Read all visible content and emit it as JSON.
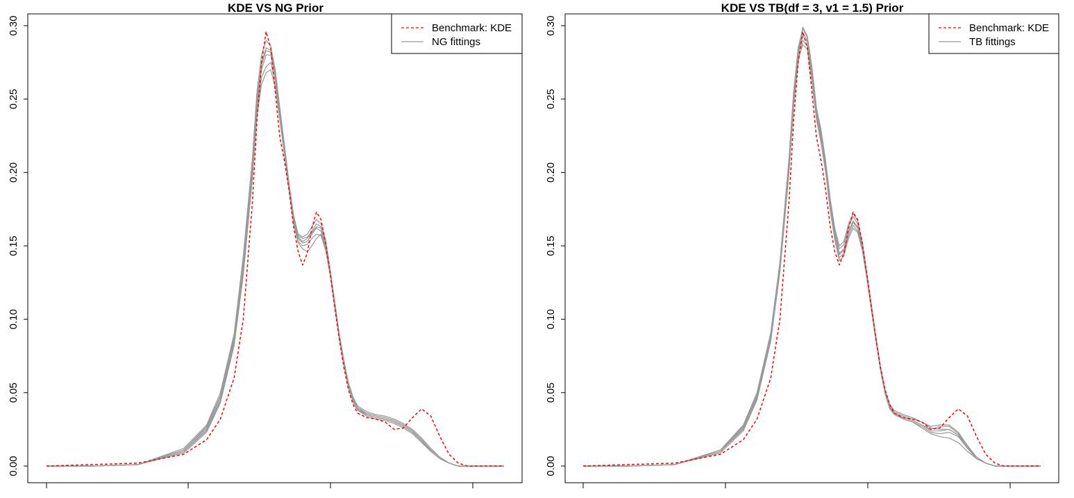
{
  "colors": {
    "kde": "#ff0000",
    "fittings": "#999999",
    "axis": "#000000"
  },
  "chart_data": [
    {
      "type": "line",
      "title": "KDE VS NG Prior",
      "xlabel": "",
      "ylabel": "",
      "ylim": [
        0,
        0.3
      ],
      "yticks": [
        "0.00",
        "0.05",
        "0.10",
        "0.15",
        "0.20",
        "0.25",
        "0.30"
      ],
      "xlim": [
        0,
        1
      ],
      "legend_position": "top-right",
      "legend": [
        "Benchmark: KDE",
        "NG fittings"
      ],
      "benchmark": {
        "name": "Benchmark: KDE",
        "x": [
          0.0,
          0.1,
          0.2,
          0.3,
          0.35,
          0.38,
          0.41,
          0.43,
          0.45,
          0.46,
          0.47,
          0.48,
          0.49,
          0.5,
          0.51,
          0.52,
          0.53,
          0.54,
          0.55,
          0.56,
          0.57,
          0.58,
          0.59,
          0.6,
          0.61,
          0.62,
          0.63,
          0.64,
          0.65,
          0.66,
          0.67,
          0.68,
          0.7,
          0.72,
          0.74,
          0.76,
          0.78,
          0.8,
          0.82,
          0.84,
          0.86,
          0.88,
          0.9,
          0.92,
          0.94,
          0.96,
          0.98,
          1.0
        ],
        "y": [
          0.0,
          0.001,
          0.002,
          0.008,
          0.018,
          0.032,
          0.06,
          0.1,
          0.18,
          0.235,
          0.275,
          0.296,
          0.285,
          0.255,
          0.224,
          0.208,
          0.188,
          0.163,
          0.146,
          0.137,
          0.145,
          0.162,
          0.173,
          0.168,
          0.152,
          0.131,
          0.108,
          0.086,
          0.067,
          0.052,
          0.042,
          0.036,
          0.033,
          0.032,
          0.03,
          0.025,
          0.026,
          0.033,
          0.039,
          0.034,
          0.02,
          0.008,
          0.002,
          0.0,
          0.0,
          0.0,
          0.0,
          0.0
        ]
      },
      "fittings": {
        "name": "NG fittings",
        "x": [
          0.0,
          0.1,
          0.2,
          0.3,
          0.35,
          0.38,
          0.41,
          0.43,
          0.45,
          0.46,
          0.47,
          0.48,
          0.49,
          0.5,
          0.51,
          0.52,
          0.53,
          0.54,
          0.55,
          0.56,
          0.57,
          0.58,
          0.59,
          0.6,
          0.61,
          0.62,
          0.63,
          0.64,
          0.65,
          0.66,
          0.67,
          0.68,
          0.7,
          0.72,
          0.74,
          0.76,
          0.78,
          0.8,
          0.82,
          0.84,
          0.86,
          0.88,
          0.9,
          0.92,
          0.94,
          0.96,
          0.98,
          1.0
        ],
        "series": [
          {
            "y": [
              0.0,
              0.0,
              0.001,
              0.01,
              0.025,
              0.045,
              0.085,
              0.135,
              0.2,
              0.245,
              0.27,
              0.28,
              0.28,
              0.265,
              0.24,
              0.215,
              0.19,
              0.168,
              0.155,
              0.152,
              0.153,
              0.158,
              0.162,
              0.16,
              0.15,
              0.132,
              0.11,
              0.088,
              0.07,
              0.055,
              0.045,
              0.039,
              0.035,
              0.033,
              0.032,
              0.03,
              0.027,
              0.023,
              0.017,
              0.01,
              0.005,
              0.002,
              0.0,
              0.0,
              0.0,
              0.0,
              0.0,
              0.0
            ]
          },
          {
            "y": [
              0.0,
              0.0,
              0.001,
              0.011,
              0.027,
              0.048,
              0.088,
              0.14,
              0.205,
              0.25,
              0.275,
              0.285,
              0.283,
              0.268,
              0.242,
              0.217,
              0.192,
              0.17,
              0.157,
              0.155,
              0.156,
              0.16,
              0.165,
              0.163,
              0.152,
              0.133,
              0.111,
              0.089,
              0.071,
              0.056,
              0.046,
              0.04,
              0.036,
              0.034,
              0.033,
              0.031,
              0.028,
              0.024,
              0.018,
              0.011,
              0.006,
              0.002,
              0.0,
              0.0,
              0.0,
              0.0,
              0.0,
              0.0
            ]
          },
          {
            "y": [
              0.0,
              0.0,
              0.001,
              0.009,
              0.023,
              0.043,
              0.082,
              0.13,
              0.196,
              0.24,
              0.265,
              0.272,
              0.275,
              0.262,
              0.238,
              0.213,
              0.188,
              0.166,
              0.153,
              0.15,
              0.151,
              0.155,
              0.158,
              0.157,
              0.147,
              0.13,
              0.108,
              0.087,
              0.069,
              0.054,
              0.044,
              0.038,
              0.034,
              0.032,
              0.031,
              0.029,
              0.026,
              0.022,
              0.016,
              0.01,
              0.005,
              0.002,
              0.0,
              0.0,
              0.0,
              0.0,
              0.0,
              0.0
            ]
          },
          {
            "y": [
              0.0,
              0.0,
              0.001,
              0.012,
              0.028,
              0.05,
              0.09,
              0.143,
              0.21,
              0.255,
              0.28,
              0.29,
              0.286,
              0.27,
              0.244,
              0.219,
              0.193,
              0.171,
              0.158,
              0.156,
              0.158,
              0.163,
              0.168,
              0.165,
              0.154,
              0.134,
              0.112,
              0.09,
              0.072,
              0.057,
              0.047,
              0.041,
              0.037,
              0.035,
              0.034,
              0.032,
              0.029,
              0.025,
              0.019,
              0.012,
              0.006,
              0.002,
              0.0,
              0.0,
              0.0,
              0.0,
              0.0,
              0.0
            ]
          },
          {
            "y": [
              0.0,
              0.0,
              0.001,
              0.01,
              0.024,
              0.044,
              0.083,
              0.132,
              0.198,
              0.238,
              0.26,
              0.268,
              0.27,
              0.258,
              0.236,
              0.212,
              0.189,
              0.165,
              0.152,
              0.148,
              0.146,
              0.15,
              0.155,
              0.158,
              0.149,
              0.131,
              0.109,
              0.087,
              0.069,
              0.054,
              0.044,
              0.038,
              0.035,
              0.033,
              0.032,
              0.03,
              0.027,
              0.023,
              0.017,
              0.01,
              0.005,
              0.002,
              0.0,
              0.0,
              0.0,
              0.0,
              0.0,
              0.0
            ]
          },
          {
            "y": [
              0.0,
              0.0,
              0.001,
              0.011,
              0.026,
              0.047,
              0.087,
              0.138,
              0.203,
              0.248,
              0.273,
              0.283,
              0.282,
              0.266,
              0.241,
              0.216,
              0.191,
              0.169,
              0.156,
              0.153,
              0.155,
              0.159,
              0.163,
              0.162,
              0.151,
              0.132,
              0.11,
              0.088,
              0.07,
              0.055,
              0.045,
              0.039,
              0.036,
              0.034,
              0.033,
              0.031,
              0.028,
              0.024,
              0.018,
              0.011,
              0.006,
              0.002,
              0.0,
              0.0,
              0.0,
              0.0,
              0.0,
              0.0
            ]
          }
        ]
      }
    },
    {
      "type": "line",
      "title": "KDE VS TB(df = 3, v1 = 1.5) Prior",
      "xlabel": "",
      "ylabel": "",
      "ylim": [
        0,
        0.3
      ],
      "yticks": [
        "0.00",
        "0.05",
        "0.10",
        "0.15",
        "0.20",
        "0.25",
        "0.30"
      ],
      "xlim": [
        0,
        1
      ],
      "legend_position": "top-right",
      "legend": [
        "Benchmark: KDE",
        "TB fittings"
      ],
      "benchmark": {
        "name": "Benchmark: KDE",
        "x": [
          0.0,
          0.1,
          0.2,
          0.3,
          0.35,
          0.38,
          0.41,
          0.43,
          0.45,
          0.46,
          0.47,
          0.48,
          0.49,
          0.5,
          0.51,
          0.52,
          0.53,
          0.54,
          0.55,
          0.56,
          0.57,
          0.58,
          0.59,
          0.6,
          0.61,
          0.62,
          0.63,
          0.64,
          0.65,
          0.66,
          0.67,
          0.68,
          0.7,
          0.72,
          0.74,
          0.76,
          0.78,
          0.8,
          0.82,
          0.84,
          0.86,
          0.88,
          0.9,
          0.92,
          0.94,
          0.96,
          0.98,
          1.0
        ],
        "y": [
          0.0,
          0.001,
          0.002,
          0.008,
          0.018,
          0.032,
          0.06,
          0.1,
          0.18,
          0.235,
          0.275,
          0.296,
          0.285,
          0.255,
          0.224,
          0.208,
          0.188,
          0.163,
          0.146,
          0.137,
          0.145,
          0.162,
          0.173,
          0.168,
          0.152,
          0.131,
          0.108,
          0.086,
          0.067,
          0.052,
          0.042,
          0.036,
          0.033,
          0.032,
          0.03,
          0.025,
          0.026,
          0.033,
          0.039,
          0.034,
          0.02,
          0.008,
          0.002,
          0.0,
          0.0,
          0.0,
          0.0,
          0.0
        ]
      },
      "fittings": {
        "name": "TB fittings",
        "x": [
          0.0,
          0.1,
          0.2,
          0.3,
          0.35,
          0.38,
          0.41,
          0.43,
          0.45,
          0.46,
          0.47,
          0.48,
          0.49,
          0.5,
          0.51,
          0.52,
          0.53,
          0.54,
          0.55,
          0.56,
          0.57,
          0.58,
          0.59,
          0.6,
          0.61,
          0.62,
          0.63,
          0.64,
          0.65,
          0.66,
          0.67,
          0.68,
          0.7,
          0.72,
          0.74,
          0.76,
          0.78,
          0.8,
          0.82,
          0.84,
          0.86,
          0.88,
          0.9,
          0.92,
          0.94,
          0.96,
          0.98,
          1.0
        ],
        "series": [
          {
            "y": [
              0.0,
              0.0,
              0.001,
              0.01,
              0.026,
              0.048,
              0.088,
              0.135,
              0.205,
              0.25,
              0.28,
              0.295,
              0.29,
              0.268,
              0.24,
              0.225,
              0.205,
              0.178,
              0.158,
              0.145,
              0.148,
              0.16,
              0.167,
              0.163,
              0.15,
              0.13,
              0.108,
              0.086,
              0.066,
              0.05,
              0.04,
              0.036,
              0.033,
              0.031,
              0.028,
              0.025,
              0.027,
              0.027,
              0.022,
              0.013,
              0.006,
              0.002,
              0.0,
              0.0,
              0.0,
              0.0,
              0.0,
              0.0
            ]
          },
          {
            "y": [
              0.0,
              0.0,
              0.001,
              0.011,
              0.028,
              0.05,
              0.091,
              0.139,
              0.21,
              0.255,
              0.285,
              0.298,
              0.292,
              0.27,
              0.242,
              0.227,
              0.206,
              0.18,
              0.16,
              0.148,
              0.151,
              0.163,
              0.17,
              0.165,
              0.152,
              0.131,
              0.109,
              0.087,
              0.067,
              0.051,
              0.041,
              0.037,
              0.034,
              0.032,
              0.03,
              0.027,
              0.028,
              0.028,
              0.023,
              0.014,
              0.006,
              0.002,
              0.0,
              0.0,
              0.0,
              0.0,
              0.0,
              0.0
            ]
          },
          {
            "y": [
              0.0,
              0.0,
              0.001,
              0.009,
              0.024,
              0.045,
              0.085,
              0.132,
              0.2,
              0.245,
              0.275,
              0.29,
              0.286,
              0.265,
              0.238,
              0.222,
              0.202,
              0.175,
              0.155,
              0.142,
              0.145,
              0.157,
              0.164,
              0.16,
              0.148,
              0.128,
              0.107,
              0.085,
              0.065,
              0.049,
              0.039,
              0.035,
              0.032,
              0.03,
              0.026,
              0.022,
              0.02,
              0.019,
              0.016,
              0.01,
              0.005,
              0.002,
              0.0,
              0.0,
              0.0,
              0.0,
              0.0,
              0.0
            ]
          },
          {
            "y": [
              0.0,
              0.0,
              0.001,
              0.011,
              0.027,
              0.049,
              0.09,
              0.137,
              0.207,
              0.252,
              0.282,
              0.299,
              0.293,
              0.272,
              0.244,
              0.229,
              0.208,
              0.182,
              0.162,
              0.15,
              0.153,
              0.165,
              0.172,
              0.167,
              0.153,
              0.132,
              0.11,
              0.088,
              0.068,
              0.052,
              0.042,
              0.038,
              0.035,
              0.033,
              0.03,
              0.026,
              0.025,
              0.025,
              0.021,
              0.013,
              0.006,
              0.002,
              0.0,
              0.0,
              0.0,
              0.0,
              0.0,
              0.0
            ]
          },
          {
            "y": [
              0.0,
              0.0,
              0.001,
              0.01,
              0.025,
              0.046,
              0.086,
              0.134,
              0.203,
              0.248,
              0.278,
              0.287,
              0.284,
              0.262,
              0.236,
              0.22,
              0.2,
              0.174,
              0.154,
              0.14,
              0.143,
              0.155,
              0.162,
              0.159,
              0.147,
              0.128,
              0.106,
              0.085,
              0.066,
              0.05,
              0.04,
              0.036,
              0.032,
              0.03,
              0.027,
              0.023,
              0.022,
              0.023,
              0.02,
              0.012,
              0.005,
              0.002,
              0.0,
              0.0,
              0.0,
              0.0,
              0.0,
              0.0
            ]
          },
          {
            "y": [
              0.0,
              0.0,
              0.001,
              0.01,
              0.027,
              0.047,
              0.089,
              0.136,
              0.206,
              0.251,
              0.281,
              0.293,
              0.289,
              0.267,
              0.24,
              0.224,
              0.204,
              0.177,
              0.157,
              0.144,
              0.147,
              0.159,
              0.166,
              0.162,
              0.149,
              0.13,
              0.108,
              0.086,
              0.066,
              0.05,
              0.04,
              0.036,
              0.033,
              0.031,
              0.028,
              0.024,
              0.024,
              0.025,
              0.021,
              0.012,
              0.006,
              0.002,
              0.0,
              0.0,
              0.0,
              0.0,
              0.0,
              0.0
            ]
          }
        ]
      }
    }
  ]
}
